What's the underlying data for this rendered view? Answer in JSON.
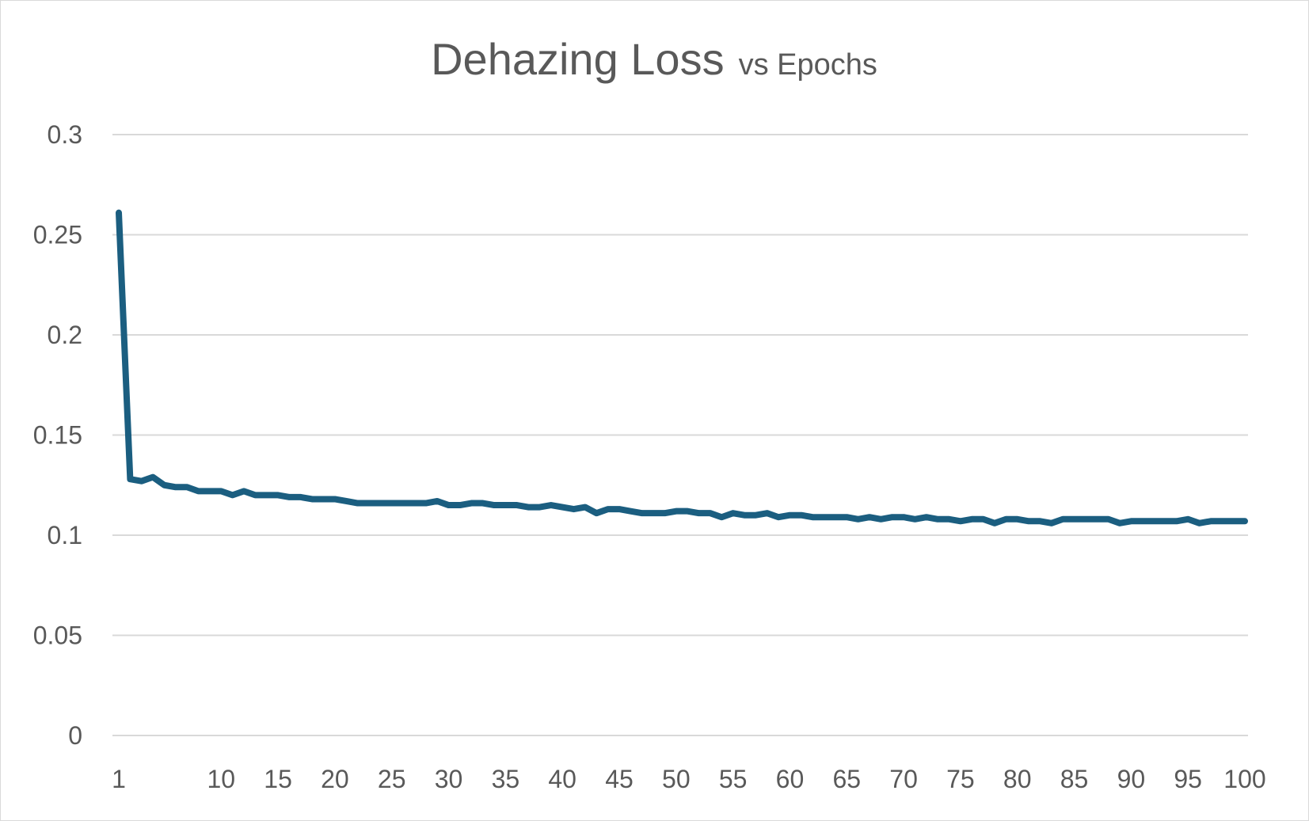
{
  "chart_data": {
    "type": "line",
    "title": "Dehazing Loss",
    "subtitle": "vs Epochs",
    "xlabel": "",
    "ylabel": "",
    "ylim": [
      0,
      0.3
    ],
    "y_ticks": [
      "0",
      "0.05",
      "0.1",
      "0.15",
      "0.2",
      "0.25",
      "0.3"
    ],
    "y_tick_values": [
      0,
      0.05,
      0.1,
      0.15,
      0.2,
      0.25,
      0.3
    ],
    "x_ticks": [
      "1",
      "10",
      "15",
      "20",
      "25",
      "30",
      "35",
      "40",
      "45",
      "50",
      "55",
      "60",
      "65",
      "70",
      "75",
      "80",
      "85",
      "90",
      "95",
      "100"
    ],
    "x_tick_values": [
      1,
      10,
      15,
      20,
      25,
      30,
      35,
      40,
      45,
      50,
      55,
      60,
      65,
      70,
      75,
      80,
      85,
      90,
      95,
      100
    ],
    "grid": true,
    "legend": "none",
    "colors": {
      "series": "#1b5e80",
      "grid": "#d9d9d9",
      "text": "#595959"
    },
    "series": [
      {
        "x": [
          1,
          2,
          3,
          4,
          5,
          6,
          7,
          8,
          9,
          10,
          11,
          12,
          13,
          14,
          15,
          16,
          17,
          18,
          19,
          20,
          21,
          22,
          23,
          24,
          25,
          26,
          27,
          28,
          29,
          30,
          31,
          32,
          33,
          34,
          35,
          36,
          37,
          38,
          39,
          40,
          41,
          42,
          43,
          44,
          45,
          46,
          47,
          48,
          49,
          50,
          51,
          52,
          53,
          54,
          55,
          56,
          57,
          58,
          59,
          60,
          61,
          62,
          63,
          64,
          65,
          66,
          67,
          68,
          69,
          70,
          71,
          72,
          73,
          74,
          75,
          76,
          77,
          78,
          79,
          80,
          81,
          82,
          83,
          84,
          85,
          86,
          87,
          88,
          89,
          90,
          91,
          92,
          93,
          94,
          95,
          96,
          97,
          98,
          99,
          100
        ],
        "values": [
          0.261,
          0.128,
          0.127,
          0.129,
          0.125,
          0.124,
          0.124,
          0.122,
          0.122,
          0.122,
          0.12,
          0.122,
          0.12,
          0.12,
          0.12,
          0.119,
          0.119,
          0.118,
          0.118,
          0.118,
          0.117,
          0.116,
          0.116,
          0.116,
          0.116,
          0.116,
          0.116,
          0.116,
          0.117,
          0.115,
          0.115,
          0.116,
          0.116,
          0.115,
          0.115,
          0.115,
          0.114,
          0.114,
          0.115,
          0.114,
          0.113,
          0.114,
          0.111,
          0.113,
          0.113,
          0.112,
          0.111,
          0.111,
          0.111,
          0.112,
          0.112,
          0.111,
          0.111,
          0.109,
          0.111,
          0.11,
          0.11,
          0.111,
          0.109,
          0.11,
          0.11,
          0.109,
          0.109,
          0.109,
          0.109,
          0.108,
          0.109,
          0.108,
          0.109,
          0.109,
          0.108,
          0.109,
          0.108,
          0.108,
          0.107,
          0.108,
          0.108,
          0.106,
          0.108,
          0.108,
          0.107,
          0.107,
          0.106,
          0.108,
          0.108,
          0.108,
          0.108,
          0.108,
          0.106,
          0.107,
          0.107,
          0.107,
          0.107,
          0.107,
          0.108,
          0.106,
          0.107,
          0.107,
          0.107,
          0.107
        ]
      }
    ]
  }
}
